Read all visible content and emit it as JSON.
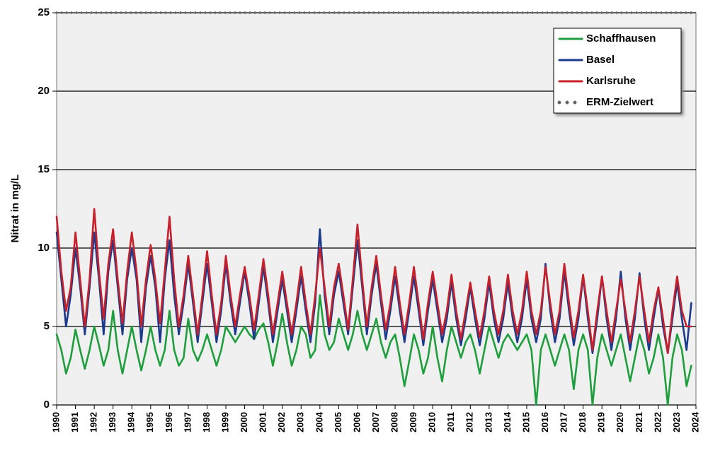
{
  "chart_data": {
    "type": "line",
    "y_label": "Nitrat in mg/L",
    "xlim": [
      1990,
      2024
    ],
    "xticks": [
      1990,
      1991,
      1992,
      1993,
      1994,
      1995,
      1996,
      1997,
      1998,
      1999,
      2000,
      2001,
      2002,
      2003,
      2004,
      2005,
      2006,
      2007,
      2008,
      2009,
      2010,
      2011,
      2012,
      2013,
      2014,
      2015,
      2016,
      2017,
      2018,
      2019,
      2020,
      2021,
      2022,
      2023,
      2024
    ],
    "ylim": [
      0,
      25
    ],
    "yticks": [
      0,
      5,
      10,
      15,
      20,
      25
    ],
    "grid": true,
    "legend": "upper right",
    "x": [
      1990,
      1990.25,
      1990.5,
      1990.75,
      1991,
      1991.25,
      1991.5,
      1991.75,
      1992,
      1992.25,
      1992.5,
      1992.75,
      1993,
      1993.25,
      1993.5,
      1993.75,
      1994,
      1994.25,
      1994.5,
      1994.75,
      1995,
      1995.25,
      1995.5,
      1995.75,
      1996,
      1996.25,
      1996.5,
      1996.75,
      1997,
      1997.25,
      1997.5,
      1997.75,
      1998,
      1998.25,
      1998.5,
      1998.75,
      1999,
      1999.25,
      1999.5,
      1999.75,
      2000,
      2000.25,
      2000.5,
      2000.75,
      2001,
      2001.25,
      2001.5,
      2001.75,
      2002,
      2002.25,
      2002.5,
      2002.75,
      2003,
      2003.25,
      2003.5,
      2003.75,
      2004,
      2004.25,
      2004.5,
      2004.75,
      2005,
      2005.25,
      2005.5,
      2005.75,
      2006,
      2006.25,
      2006.5,
      2006.75,
      2007,
      2007.25,
      2007.5,
      2007.75,
      2008,
      2008.25,
      2008.5,
      2008.75,
      2009,
      2009.25,
      2009.5,
      2009.75,
      2010,
      2010.25,
      2010.5,
      2010.75,
      2011,
      2011.25,
      2011.5,
      2011.75,
      2012,
      2012.25,
      2012.5,
      2012.75,
      2013,
      2013.25,
      2013.5,
      2013.75,
      2014,
      2014.25,
      2014.5,
      2014.75,
      2015,
      2015.25,
      2015.5,
      2015.75,
      2016,
      2016.25,
      2016.5,
      2016.75,
      2017,
      2017.25,
      2017.5,
      2017.75,
      2018,
      2018.25,
      2018.5,
      2018.75,
      2019,
      2019.25,
      2019.5,
      2019.75,
      2020,
      2020.25,
      2020.5,
      2020.75,
      2021,
      2021.25,
      2021.5,
      2021.75,
      2022,
      2022.25,
      2022.5,
      2022.75,
      2023,
      2023.25,
      2023.5,
      2023.75
    ],
    "series": [
      {
        "name": "Schaffhausen",
        "color": "#1e9e3c",
        "values": [
          4.5,
          3.5,
          2.0,
          3.0,
          4.8,
          3.5,
          2.3,
          3.5,
          5.0,
          3.8,
          2.5,
          3.5,
          6.0,
          3.5,
          2.0,
          3.5,
          5.0,
          3.5,
          2.2,
          3.5,
          5.0,
          3.5,
          2.5,
          3.5,
          6.0,
          3.5,
          2.5,
          3.0,
          5.5,
          3.5,
          2.8,
          3.5,
          4.5,
          3.5,
          2.5,
          3.5,
          5.0,
          4.5,
          4.0,
          4.5,
          5.0,
          4.5,
          4.2,
          4.8,
          5.2,
          4.0,
          2.5,
          4.0,
          5.8,
          4.0,
          2.5,
          3.5,
          5.0,
          4.5,
          3.0,
          3.5,
          7.0,
          4.5,
          3.5,
          4.0,
          5.5,
          4.5,
          3.5,
          4.5,
          6.0,
          4.5,
          3.5,
          4.5,
          5.5,
          4.0,
          3.0,
          4.0,
          4.5,
          3.0,
          1.2,
          2.8,
          4.5,
          3.5,
          2.0,
          3.0,
          5.0,
          3.0,
          1.5,
          3.5,
          5.0,
          4.0,
          3.0,
          4.0,
          4.5,
          3.5,
          2.0,
          3.5,
          5.0,
          4.0,
          3.0,
          4.0,
          4.5,
          4.0,
          3.5,
          4.0,
          4.5,
          3.5,
          0.0,
          3.5,
          4.5,
          3.5,
          2.5,
          3.5,
          4.5,
          3.5,
          1.0,
          3.5,
          4.5,
          3.5,
          0.0,
          3.0,
          4.5,
          3.5,
          2.5,
          3.5,
          4.5,
          3.0,
          1.5,
          3.0,
          4.5,
          3.5,
          2.0,
          3.0,
          4.5,
          3.0,
          0.0,
          3.0,
          4.5,
          3.5,
          1.2,
          2.5
        ]
      },
      {
        "name": "Basel",
        "color": "#1c3a8c",
        "values": [
          11.0,
          8.0,
          5.0,
          7.0,
          10.0,
          7.5,
          4.5,
          7.5,
          11.0,
          8.0,
          4.5,
          8.5,
          10.5,
          7.5,
          4.5,
          8.0,
          10.0,
          8.0,
          4.0,
          7.5,
          9.5,
          7.5,
          4.0,
          8.0,
          10.5,
          7.0,
          4.5,
          6.5,
          9.0,
          6.5,
          4.0,
          6.5,
          9.0,
          6.5,
          4.0,
          6.0,
          9.0,
          6.5,
          4.5,
          6.5,
          8.5,
          6.5,
          4.2,
          6.5,
          8.8,
          6.5,
          4.0,
          6.0,
          8.0,
          6.0,
          4.0,
          6.0,
          8.2,
          6.0,
          4.0,
          6.5,
          11.2,
          7.0,
          4.5,
          7.0,
          8.5,
          6.5,
          4.5,
          7.5,
          10.5,
          7.5,
          4.5,
          7.0,
          9.0,
          6.5,
          4.2,
          6.0,
          8.2,
          6.0,
          4.0,
          6.0,
          8.2,
          6.0,
          3.8,
          6.0,
          8.0,
          6.0,
          4.0,
          5.5,
          7.8,
          5.5,
          3.8,
          5.5,
          7.5,
          5.5,
          3.8,
          5.5,
          7.8,
          5.5,
          4.0,
          5.5,
          7.8,
          5.5,
          4.0,
          5.5,
          8.0,
          5.5,
          4.0,
          5.5,
          9.0,
          6.0,
          4.0,
          5.5,
          8.5,
          6.0,
          3.8,
          5.5,
          8.2,
          5.5,
          3.3,
          5.5,
          8.2,
          5.5,
          3.5,
          5.5,
          8.5,
          5.5,
          3.5,
          5.5,
          8.4,
          5.5,
          3.5,
          5.5,
          7.4,
          5.0,
          3.3,
          5.5,
          7.8,
          5.5,
          3.5,
          6.5
        ]
      },
      {
        "name": "Karlsruhe",
        "color": "#c8202a",
        "values": [
          12.0,
          8.5,
          6.0,
          7.5,
          11.0,
          8.0,
          5.0,
          8.0,
          12.5,
          8.5,
          5.5,
          9.0,
          11.2,
          8.0,
          5.2,
          8.5,
          11.0,
          8.5,
          5.0,
          8.0,
          10.2,
          8.0,
          5.2,
          8.5,
          12.0,
          8.0,
          5.0,
          7.0,
          9.5,
          7.0,
          4.5,
          7.0,
          9.8,
          7.0,
          4.5,
          6.5,
          9.5,
          7.0,
          5.0,
          7.0,
          8.8,
          7.0,
          4.8,
          7.0,
          9.3,
          7.0,
          4.5,
          6.5,
          8.5,
          6.5,
          4.5,
          6.5,
          8.8,
          6.5,
          4.5,
          7.0,
          10.0,
          7.5,
          5.0,
          7.5,
          9.0,
          7.0,
          4.8,
          8.0,
          11.5,
          8.0,
          5.0,
          7.5,
          9.5,
          7.0,
          4.8,
          6.5,
          8.8,
          6.5,
          4.5,
          6.5,
          8.8,
          6.5,
          4.2,
          6.5,
          8.5,
          6.5,
          4.5,
          6.0,
          8.3,
          6.0,
          4.2,
          6.0,
          7.8,
          6.0,
          4.3,
          6.0,
          8.2,
          6.0,
          4.5,
          6.0,
          8.3,
          6.0,
          4.5,
          6.0,
          8.5,
          6.0,
          4.5,
          6.0,
          8.8,
          6.5,
          4.5,
          6.0,
          9.0,
          6.5,
          4.3,
          6.0,
          8.3,
          6.0,
          3.5,
          6.0,
          8.2,
          6.0,
          4.0,
          6.0,
          8.0,
          6.0,
          4.0,
          6.0,
          8.2,
          6.0,
          4.0,
          6.0,
          7.5,
          5.5,
          3.3,
          6.0,
          8.2,
          6.0,
          5.0,
          5.0
        ]
      },
      {
        "name": "ERM-Zielwert",
        "color": "#666666",
        "style": "dotted",
        "x": [
          1990,
          2024
        ],
        "values": [
          25,
          25
        ]
      }
    ]
  }
}
